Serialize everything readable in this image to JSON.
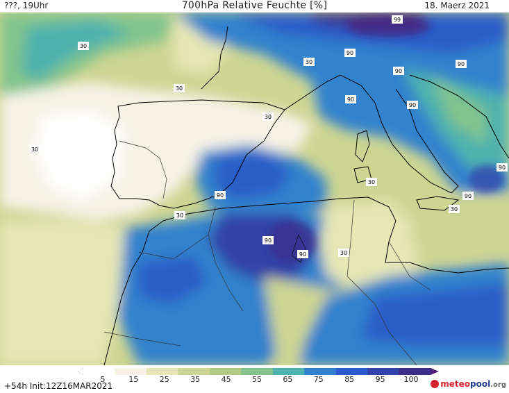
{
  "header": {
    "left_label": "???, 19Uhr",
    "title": "700hPa Relative Feuchte [%]",
    "date": "18. Maerz 2021"
  },
  "map": {
    "contour_labels": [
      "99",
      "90",
      "90",
      "90",
      "90",
      "90",
      "90",
      "90",
      "90",
      "90",
      "90",
      "30",
      "30",
      "30",
      "30",
      "30",
      "30",
      "30",
      "30",
      "30"
    ]
  },
  "colorbar": {
    "ticks": [
      "5",
      "15",
      "25",
      "35",
      "45",
      "55",
      "65",
      "75",
      "85",
      "95",
      "100"
    ],
    "colors": [
      "#ffffff",
      "#f6f3e6",
      "#e5e7b6",
      "#cdd592",
      "#b2cc82",
      "#82c48c",
      "#4fb2ae",
      "#3182cd",
      "#2a5dc8",
      "#3243a7",
      "#3a2d8c",
      "#4b1f78"
    ]
  },
  "footer": {
    "init": "+54h Init:12Z16MAR2021",
    "logo_meteo": "meteo",
    "logo_pool": "pool",
    "logo_org": ".org"
  }
}
